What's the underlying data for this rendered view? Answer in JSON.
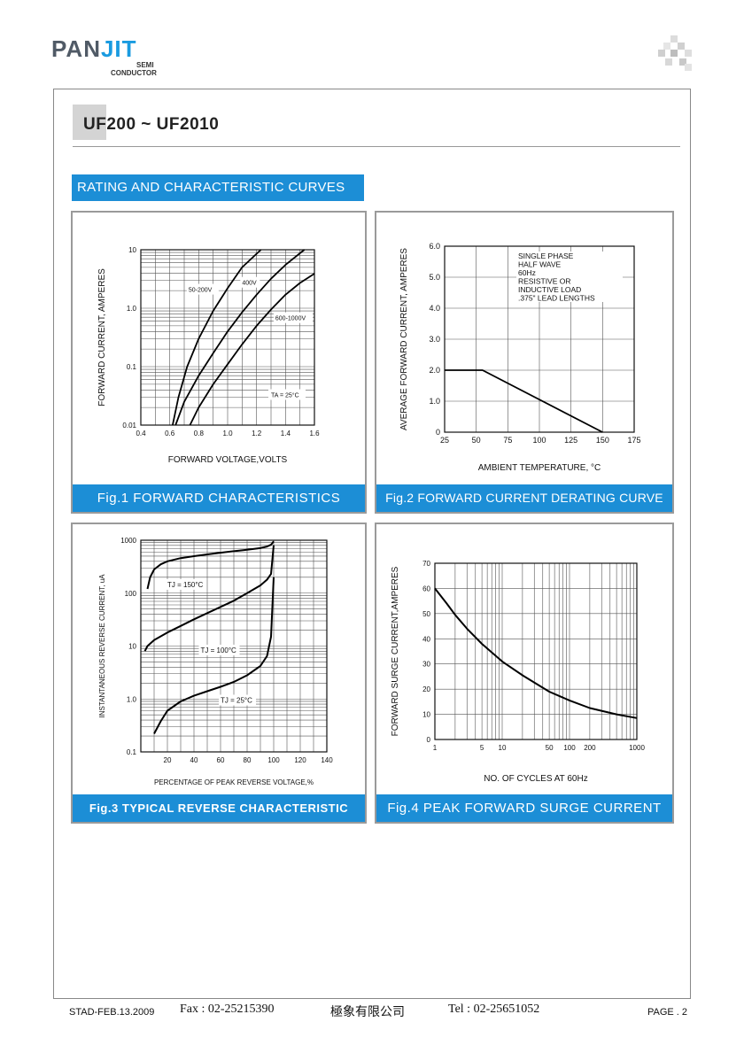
{
  "header": {
    "brand_pan": "PAN",
    "brand_jit": "JIT",
    "brand_semi": "SEMI",
    "brand_conductor": "CONDUCTOR",
    "title": "UF200 ~ UF2010",
    "section": "RATING AND CHARACTERISTIC CURVES"
  },
  "footer": {
    "doc_code": "STAD-FEB.13.2009",
    "fax": "Fax : 02-25215390",
    "company": "極象有限公司",
    "tel": "Tel : 02-25651052",
    "page": "PAGE . 2"
  },
  "colors": {
    "accent": "#1c8ed6",
    "frame": "#9a9a9a"
  },
  "chart_data": [
    {
      "id": "fig1",
      "type": "line",
      "caption": "Fig.1 FORWARD CHARACTERISTICS",
      "xlabel": "FORWARD VOLTAGE,VOLTS",
      "ylabel": "FORWARD CURRENT, AMPERES",
      "xlim": [
        0.4,
        1.6
      ],
      "ylim": [
        0.01,
        10
      ],
      "yscale": "log",
      "xticks": [
        0.4,
        0.6,
        0.8,
        1.0,
        1.2,
        1.4,
        1.6
      ],
      "xtick_labels": [
        "0.4",
        "0.6",
        "0.8",
        "1.0",
        "1.2",
        "1.4",
        "1.6"
      ],
      "yticks": [
        0.01,
        0.1,
        1.0,
        10
      ],
      "ytick_labels": [
        "0.01",
        "0.1",
        "1.0",
        "10"
      ],
      "annotation": "TA = 25°C",
      "series": [
        {
          "name": "50-200V",
          "x": [
            0.62,
            0.66,
            0.72,
            0.8,
            0.9,
            1.0,
            1.1,
            1.23
          ],
          "y": [
            0.01,
            0.03,
            0.1,
            0.3,
            0.9,
            2.2,
            5,
            10
          ]
        },
        {
          "name": "400V",
          "x": [
            0.64,
            0.7,
            0.8,
            0.9,
            1.0,
            1.1,
            1.2,
            1.3,
            1.4,
            1.53
          ],
          "y": [
            0.01,
            0.025,
            0.07,
            0.17,
            0.4,
            0.85,
            1.7,
            3.2,
            5.5,
            10
          ]
        },
        {
          "name": "600-1000V",
          "x": [
            0.74,
            0.8,
            0.9,
            1.0,
            1.1,
            1.2,
            1.3,
            1.4,
            1.5,
            1.6
          ],
          "y": [
            0.01,
            0.02,
            0.05,
            0.11,
            0.24,
            0.5,
            0.95,
            1.7,
            2.7,
            3.9
          ]
        }
      ]
    },
    {
      "id": "fig2",
      "type": "line",
      "caption": "Fig.2 FORWARD CURRENT DERATING CURVE",
      "xlabel": "AMBIENT TEMPERATURE, °C",
      "ylabel": "AVERAGE FORWARD CURRENT, AMPERES",
      "xlim": [
        25,
        175
      ],
      "ylim": [
        0,
        6
      ],
      "xticks": [
        25,
        50,
        75,
        100,
        125,
        150,
        175
      ],
      "xtick_labels": [
        "25",
        "50",
        "75",
        "100",
        "125",
        "150",
        "175"
      ],
      "yticks": [
        0,
        1,
        2,
        3,
        4,
        5,
        6
      ],
      "ytick_labels": [
        "0",
        "1.0",
        "2.0",
        "3.0",
        "4.0",
        "5.0",
        "6.0"
      ],
      "note": [
        "SINGLE PHASE",
        "HALF WAVE",
        "60Hz",
        "RESISTIVE OR",
        "INDUCTIVE LOAD",
        ".375\" LEAD LENGTHS"
      ],
      "series": [
        {
          "name": "",
          "x": [
            25,
            55,
            150
          ],
          "y": [
            2.0,
            2.0,
            0
          ]
        }
      ]
    },
    {
      "id": "fig3",
      "type": "line",
      "caption": "Fig.3  TYPICAL REVERSE CHARACTERISTIC",
      "xlabel": "PERCENTAGE OF PEAK REVERSE VOLTAGE,%",
      "ylabel": "INSTANTANEOUS REVERSE CURRENT, uA",
      "xlim": [
        0,
        140
      ],
      "ylim": [
        0.1,
        1000
      ],
      "yscale": "log",
      "xticks": [
        20,
        40,
        60,
        80,
        100,
        120,
        140
      ],
      "xtick_labels": [
        "20",
        "40",
        "60",
        "80",
        "100",
        "120",
        "140"
      ],
      "yticks": [
        0.1,
        1.0,
        10,
        100,
        1000
      ],
      "ytick_labels": [
        "0.1",
        "1.0",
        "10",
        "100",
        "1000"
      ],
      "series": [
        {
          "name": "TJ = 150°C",
          "x": [
            5,
            7,
            10,
            15,
            20,
            30,
            40,
            50,
            60,
            70,
            80,
            90,
            95,
            98,
            100
          ],
          "y": [
            120,
            200,
            280,
            350,
            400,
            460,
            500,
            540,
            580,
            620,
            660,
            710,
            760,
            820,
            950
          ]
        },
        {
          "name": "TJ = 100°C",
          "x": [
            3,
            5,
            10,
            20,
            30,
            40,
            50,
            60,
            70,
            80,
            90,
            95,
            98,
            100
          ],
          "y": [
            8,
            10,
            13,
            18,
            24,
            32,
            42,
            55,
            72,
            100,
            140,
            180,
            230,
            800
          ]
        },
        {
          "name": "TJ = 25°C",
          "x": [
            10,
            15,
            20,
            30,
            40,
            50,
            60,
            70,
            80,
            90,
            95,
            98,
            100
          ],
          "y": [
            0.22,
            0.38,
            0.6,
            0.9,
            1.15,
            1.4,
            1.7,
            2.1,
            2.8,
            4.2,
            6.5,
            15,
            200
          ]
        }
      ]
    },
    {
      "id": "fig4",
      "type": "line",
      "caption": "Fig.4 PEAK FORWARD SURGE CURRENT",
      "xlabel": "NO. OF CYCLES AT 60Hz",
      "ylabel": "FORWARD SURGE CURRENT,AMPERES",
      "xlim": [
        1,
        1000
      ],
      "ylim": [
        0,
        70
      ],
      "xscale": "log",
      "xticks": [
        1,
        5,
        10,
        50,
        100,
        200,
        1000
      ],
      "xtick_labels": [
        "1",
        "5",
        "10",
        "50",
        "100",
        "200",
        "1000"
      ],
      "yticks": [
        0,
        10,
        20,
        30,
        40,
        50,
        60,
        70
      ],
      "ytick_labels": [
        "0",
        "10",
        "20",
        "30",
        "40",
        "50",
        "60",
        "70"
      ],
      "series": [
        {
          "name": "",
          "x": [
            1,
            1.5,
            2,
            3,
            5,
            10,
            20,
            50,
            100,
            200,
            500,
            1000
          ],
          "y": [
            60,
            54,
            49.5,
            44,
            38,
            31,
            25.5,
            19,
            15.5,
            12.5,
            10,
            8.5
          ]
        }
      ]
    }
  ]
}
